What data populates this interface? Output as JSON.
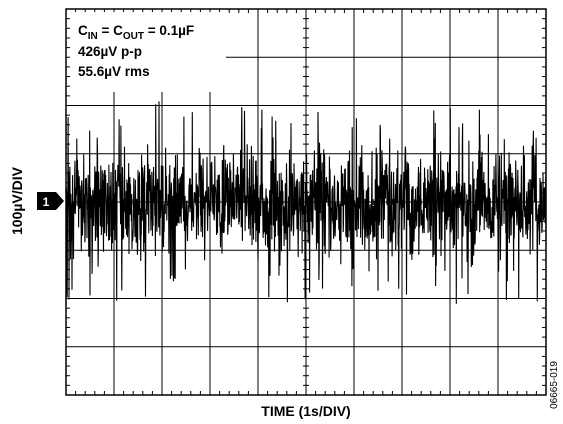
{
  "chart_data": {
    "type": "line",
    "title": "",
    "xlabel": "TIME (1s/DIV)",
    "ylabel": "100µV/DIV",
    "x_divisions": 10,
    "y_divisions": 8,
    "x_units_per_div": 1,
    "y_units_per_div": 100,
    "xlim": [
      0,
      10
    ],
    "ylim": [
      -400,
      400
    ],
    "grid": true,
    "trace_color": "#000000",
    "channel_marker": "1",
    "figure_id": "06665-019",
    "annotations": {
      "line1_main": "C",
      "line1_sub1": "IN",
      "line1_mid": " = C",
      "line1_sub2": "OUT",
      "line1_tail": " = 0.1µF",
      "line2": "426µV p-p",
      "line3": "55.6µV rms"
    },
    "stats": {
      "peak_to_peak_uV": 426,
      "rms_uV": 55.6
    },
    "series": [
      {
        "x": [
          0,
          10
        ],
        "y": [
          0,
          0
        ]
      }
    ]
  }
}
